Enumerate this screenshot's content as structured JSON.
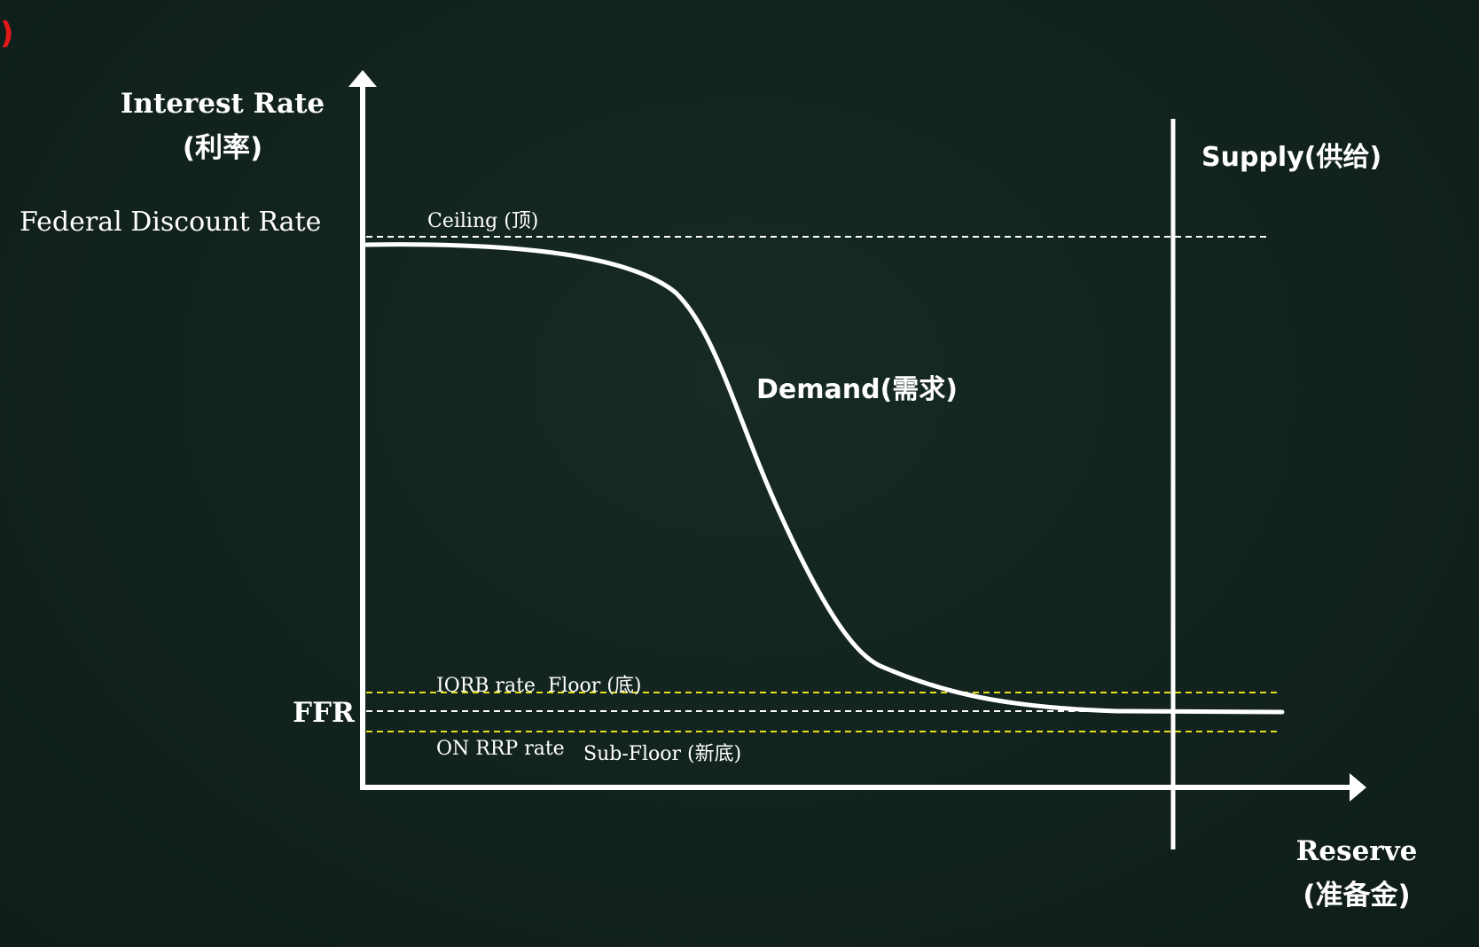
{
  "corner_mark": ")",
  "y_axis": {
    "title_line1": "Interest Rate",
    "title_line2": "(利率)"
  },
  "x_axis": {
    "title_line1": "Reserve",
    "title_line2": "(准备金)"
  },
  "labels": {
    "federal_discount_rate": "Federal Discount Rate",
    "ceiling": "Ceiling (顶)",
    "demand": "Demand(需求)",
    "supply": "Supply(供给)",
    "iorb": "IORB rate  Floor (底)",
    "ffr": "FFR",
    "on_rrp": "ON RRP rate",
    "sub_floor": "Sub-Floor (新底)"
  },
  "colors": {
    "background": "#13231f",
    "line": "#ffffff",
    "floor_lines": "#e6e01c",
    "corner_mark": "#e01818"
  }
}
